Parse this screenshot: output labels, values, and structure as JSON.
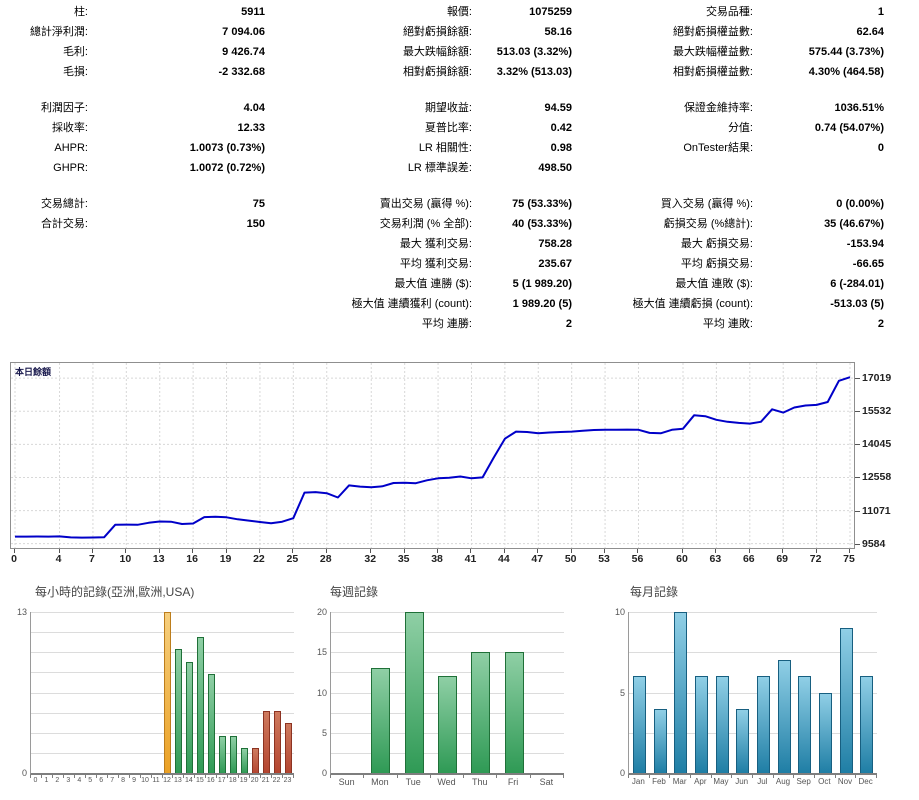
{
  "palette": {
    "line": "#0000C8",
    "grid": "#D8D8D8",
    "green": {
      "top": "#8FCFA5",
      "bottom": "#2F9A55",
      "border": "#1F7038"
    },
    "orange": {
      "top": "#F6CF7E",
      "bottom": "#EBA125",
      "border": "#BC7D1C"
    },
    "red": {
      "top": "#CE7A5E",
      "bottom": "#B44530",
      "border": "#8C3322"
    },
    "blue": {
      "top": "#90CFE6",
      "bottom": "#1F7EA5",
      "border": "#175F80"
    }
  },
  "report": {
    "stats_columns": [
      {
        "sections": [
          [
            {
              "l": "柱:",
              "v": "5911"
            },
            {
              "l": "總計淨利潤:",
              "v": "7 094.06"
            },
            {
              "l": "毛利:",
              "v": "9 426.74"
            },
            {
              "l": "毛損:",
              "v": "-2 332.68"
            }
          ],
          [
            {
              "l": "利潤因子:",
              "v": "4.04"
            },
            {
              "l": "採收率:",
              "v": "12.33"
            },
            {
              "l": "AHPR:",
              "v": "1.0073 (0.73%)"
            },
            {
              "l": "GHPR:",
              "v": "1.0072 (0.72%)"
            }
          ],
          [
            {
              "l": "交易總計:",
              "v": "75"
            },
            {
              "l": "合計交易:",
              "v": "150"
            },
            {
              "l": "",
              "v": ""
            },
            {
              "l": "",
              "v": ""
            },
            {
              "l": "",
              "v": ""
            },
            {
              "l": "",
              "v": ""
            },
            {
              "l": "",
              "v": ""
            }
          ]
        ]
      },
      {
        "sections": [
          [
            {
              "l": "報價:",
              "v": "1075259"
            },
            {
              "l": "絕對虧損餘額:",
              "v": "58.16"
            },
            {
              "l": "最大跌幅餘額:",
              "v": "513.03 (3.32%)"
            },
            {
              "l": "相對虧損餘額:",
              "v": "3.32% (513.03)"
            }
          ],
          [
            {
              "l": "期望收益:",
              "v": "94.59"
            },
            {
              "l": "夏普比率:",
              "v": "0.42"
            },
            {
              "l": "LR 相關性:",
              "v": "0.98"
            },
            {
              "l": "LR 標準誤差:",
              "v": "498.50"
            }
          ],
          [
            {
              "l": "賣出交易 (贏得 %):",
              "v": "75 (53.33%)"
            },
            {
              "l": "交易利潤 (% 全部):",
              "v": "40 (53.33%)"
            },
            {
              "l": "最大 獲利交易:",
              "v": "758.28"
            },
            {
              "l": "平均 獲利交易:",
              "v": "235.67"
            },
            {
              "l": "最大值 連勝 ($):",
              "v": "5 (1 989.20)"
            },
            {
              "l": "極大值 連續獲利 (count):",
              "v": "1 989.20 (5)"
            },
            {
              "l": "平均 連勝:",
              "v": "2"
            }
          ]
        ]
      },
      {
        "sections": [
          [
            {
              "l": "交易品種:",
              "v": "1"
            },
            {
              "l": "絕對虧損權益數:",
              "v": "62.64"
            },
            {
              "l": "最大跌幅權益數:",
              "v": "575.44 (3.73%)"
            },
            {
              "l": "相對虧損權益數:",
              "v": "4.30% (464.58)"
            }
          ],
          [
            {
              "l": "保證金維持率:",
              "v": "1036.51%"
            },
            {
              "l": "分值:",
              "v": "0.74 (54.07%)"
            },
            {
              "l": "OnTester結果:",
              "v": "0"
            },
            {
              "l": "",
              "v": ""
            }
          ],
          [
            {
              "l": "買入交易 (贏得 %):",
              "v": "0 (0.00%)"
            },
            {
              "l": "虧損交易 (%總計):",
              "v": "35 (46.67%)"
            },
            {
              "l": "最大 虧損交易:",
              "v": "-153.94"
            },
            {
              "l": "平均 虧損交易:",
              "v": "-66.65"
            },
            {
              "l": "最大值 連敗 ($):",
              "v": "6 (-284.01)"
            },
            {
              "l": "極大值 連續虧損 (count):",
              "v": "-513.03 (5)"
            },
            {
              "l": "平均 連敗:",
              "v": "2"
            }
          ]
        ]
      }
    ]
  },
  "chart_data": [
    {
      "id": "balance-curve",
      "type": "line",
      "title": "本日餘額",
      "xlabel": "",
      "ylabel": "",
      "xlim": [
        0,
        75
      ],
      "ylim": [
        9390,
        17700
      ],
      "x_ticks": [
        0,
        4,
        7,
        10,
        13,
        16,
        19,
        22,
        25,
        28,
        32,
        35,
        38,
        41,
        44,
        47,
        50,
        53,
        56,
        60,
        63,
        66,
        69,
        72,
        75
      ],
      "y_ticks": [
        17019,
        15532,
        14045,
        12558,
        11071,
        9584
      ],
      "grid": true,
      "legend_position": "top-left",
      "values": [
        9900,
        9900,
        9905,
        9900,
        9910,
        9865,
        9855,
        9860,
        9870,
        10430,
        10440,
        10430,
        10520,
        10580,
        10570,
        10470,
        10490,
        10780,
        10795,
        10770,
        10680,
        10620,
        10560,
        10500,
        10570,
        10730,
        11880,
        11900,
        11850,
        11660,
        12200,
        12150,
        12120,
        12160,
        12310,
        12320,
        12300,
        12430,
        12520,
        12550,
        12600,
        12520,
        12560,
        13450,
        14300,
        14620,
        14600,
        14540,
        14580,
        14600,
        14620,
        14660,
        14690,
        14700,
        14700,
        14710,
        14700,
        14560,
        14540,
        14700,
        14750,
        15350,
        15310,
        15150,
        15060,
        15010,
        14980,
        15060,
        15620,
        15470,
        15700,
        15790,
        15820,
        15950,
        16900,
        17060
      ]
    },
    {
      "id": "hourly",
      "type": "bar",
      "title": "每小時的記錄(亞洲,歐洲,USA)",
      "categories": [
        "0",
        "1",
        "2",
        "3",
        "4",
        "5",
        "6",
        "7",
        "8",
        "9",
        "10",
        "11",
        "12",
        "13",
        "14",
        "15",
        "16",
        "17",
        "18",
        "19",
        "20",
        "21",
        "22",
        "23"
      ],
      "values": [
        0,
        0,
        0,
        0,
        0,
        0,
        0,
        0,
        0,
        0,
        0,
        0,
        13,
        10,
        9,
        11,
        8,
        3,
        3,
        2,
        2,
        5,
        5,
        4
      ],
      "bar_colors": [
        "green",
        "green",
        "green",
        "green",
        "green",
        "green",
        "green",
        "green",
        "green",
        "green",
        "green",
        "green",
        "orange",
        "green",
        "green",
        "green",
        "green",
        "green",
        "green",
        "green",
        "red",
        "red",
        "red",
        "red"
      ],
      "ylim": [
        0,
        13
      ],
      "y_ticks": [
        0,
        13
      ],
      "grid_divisions": 8
    },
    {
      "id": "weekly",
      "type": "bar",
      "title": "每週記錄",
      "categories": [
        "Sun",
        "Mon",
        "Tue",
        "Wed",
        "Thu",
        "Fri",
        "Sat"
      ],
      "values": [
        0,
        13,
        20,
        12,
        15,
        15,
        0
      ],
      "bar_colors": [
        "green",
        "green",
        "green",
        "green",
        "green",
        "green",
        "green"
      ],
      "ylim": [
        0,
        20
      ],
      "y_ticks": [
        0,
        5,
        10,
        15,
        20
      ],
      "grid_divisions": 8
    },
    {
      "id": "monthly",
      "type": "bar",
      "title": "每月記錄",
      "categories": [
        "Jan",
        "Feb",
        "Mar",
        "Apr",
        "May",
        "Jun",
        "Jul",
        "Aug",
        "Sep",
        "Oct",
        "Nov",
        "Dec"
      ],
      "values": [
        6,
        4,
        10,
        6,
        6,
        4,
        6,
        7,
        6,
        5,
        9,
        6
      ],
      "bar_colors": [
        "blue",
        "blue",
        "blue",
        "blue",
        "blue",
        "blue",
        "blue",
        "blue",
        "blue",
        "blue",
        "blue",
        "blue"
      ],
      "ylim": [
        0,
        10
      ],
      "y_ticks": [
        0,
        5,
        10
      ],
      "grid_divisions": 4
    }
  ]
}
